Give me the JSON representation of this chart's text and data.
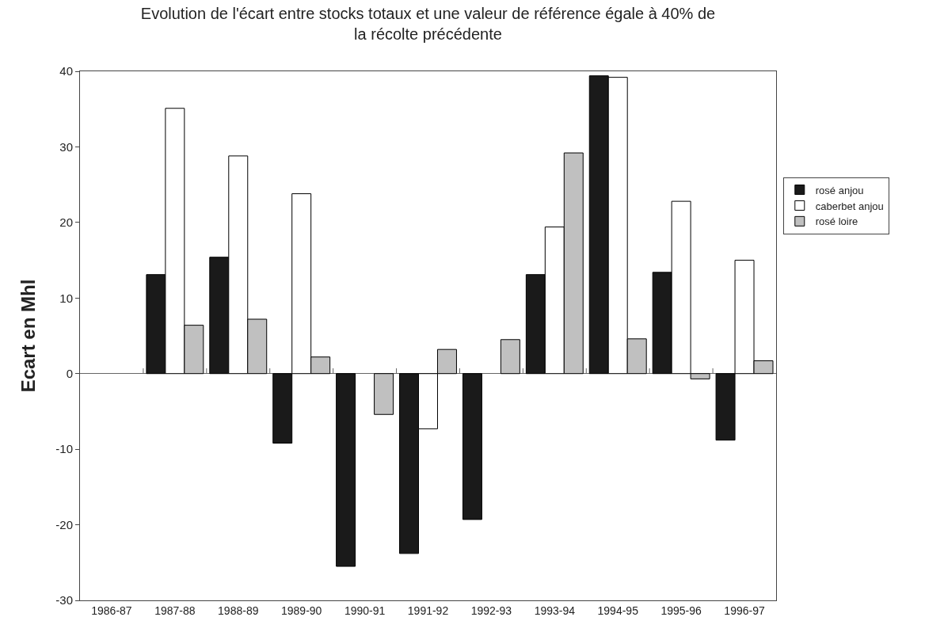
{
  "chart_data": {
    "type": "bar",
    "title": "Evolution de l'écart entre stocks totaux et une valeur de référence égale à 40% de\nla récolte précédente",
    "ylabel": "Ecart en Mhl",
    "categories": [
      "1986-87",
      "1987-88",
      "1988-89",
      "1989-90",
      "1990-91",
      "1991-92",
      "1992-93",
      "1993-94",
      "1994-95",
      "1995-96",
      "1996-97"
    ],
    "series": [
      {
        "name": "rosé anjou",
        "color": "#1a1a1a",
        "values": [
          null,
          13.1,
          15.4,
          -9.2,
          -25.5,
          -23.8,
          -19.3,
          13.1,
          39.4,
          13.4,
          -8.8
        ]
      },
      {
        "name": "caberbet anjou",
        "color": "#ffffff",
        "values": [
          null,
          35.1,
          28.8,
          23.8,
          null,
          -7.3,
          null,
          19.4,
          39.2,
          22.8,
          15.0
        ]
      },
      {
        "name": "rosé loire",
        "color": "#c0c0c0",
        "values": [
          null,
          6.4,
          7.2,
          2.2,
          -5.4,
          3.2,
          4.5,
          29.2,
          4.6,
          -0.7,
          1.7
        ]
      }
    ],
    "ylim": [
      -30,
      40
    ],
    "yticks": [
      -30,
      -20,
      -10,
      0,
      10,
      20,
      30,
      40
    ],
    "legend": "right"
  }
}
